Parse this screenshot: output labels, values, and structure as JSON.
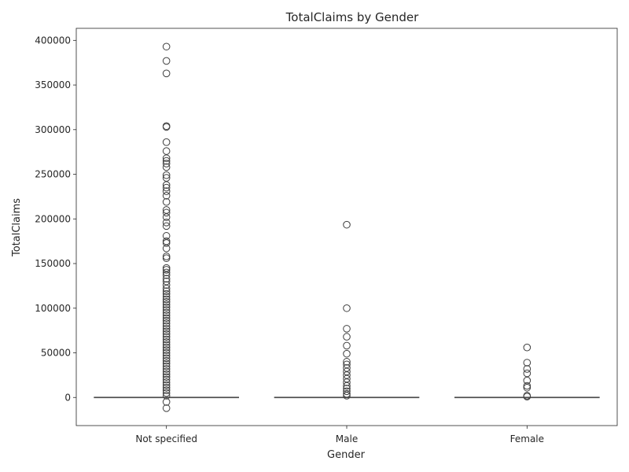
{
  "chart_data": {
    "type": "box",
    "title": "TotalClaims by Gender",
    "xlabel": "Gender",
    "ylabel": "TotalClaims",
    "ylim": [
      -31500,
      413500
    ],
    "yticks": [
      "0",
      "50000",
      "100000",
      "150000",
      "200000",
      "250000",
      "300000",
      "350000",
      "400000"
    ],
    "ytick_values": [
      0,
      50000,
      100000,
      150000,
      200000,
      250000,
      300000,
      350000,
      400000
    ],
    "categories": [
      "Not specified",
      "Male",
      "Female"
    ],
    "grid": false,
    "colors": {
      "box": "#4d4d4d",
      "outlier": "#3f3f3f"
    },
    "boxes": [
      {
        "name": "Not specified",
        "q1": 0,
        "median": 0,
        "q3": 0,
        "whisker_low": 0,
        "whisker_high": 0,
        "outliers": [
          393000,
          377000,
          363000,
          304000,
          303000,
          286000,
          276000,
          268000,
          265000,
          262000,
          258000,
          249000,
          246000,
          238000,
          235000,
          231000,
          226000,
          219000,
          210000,
          207000,
          202000,
          196000,
          192000,
          181000,
          175000,
          173000,
          167000,
          158000,
          156000,
          145000,
          143000,
          140000,
          137000,
          133000,
          130000,
          126000,
          122000,
          119000,
          116000,
          113000,
          110000,
          107000,
          104000,
          101000,
          98000,
          95000,
          92000,
          89000,
          86000,
          83000,
          80000,
          77000,
          74000,
          71000,
          68000,
          65000,
          62000,
          59000,
          56000,
          53000,
          50000,
          47000,
          44000,
          41000,
          38000,
          35000,
          32000,
          29000,
          26000,
          23000,
          20000,
          17000,
          14000,
          11000,
          8000,
          5000,
          2000,
          -5000,
          -12000
        ]
      },
      {
        "name": "Male",
        "q1": 0,
        "median": 0,
        "q3": 0,
        "whisker_low": 0,
        "whisker_high": 0,
        "outliers": [
          193500,
          100000,
          77000,
          68000,
          58000,
          49000,
          40000,
          37000,
          33000,
          29000,
          25000,
          21000,
          17000,
          13000,
          10000,
          7000,
          4000,
          2000
        ]
      },
      {
        "name": "Female",
        "q1": 0,
        "median": 0,
        "q3": 0,
        "whisker_low": 0,
        "whisker_high": 0,
        "outliers": [
          56000,
          39000,
          32000,
          27000,
          19000,
          13000,
          11000,
          2000,
          1000
        ]
      }
    ]
  }
}
